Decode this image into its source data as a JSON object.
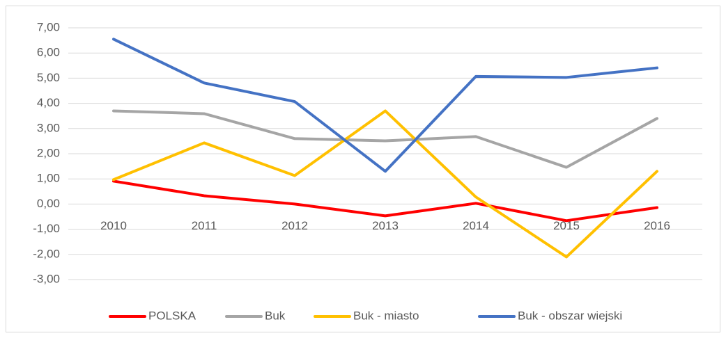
{
  "chart_data": {
    "type": "line",
    "categories": [
      "2010",
      "2011",
      "2012",
      "2013",
      "2014",
      "2015",
      "2016"
    ],
    "series": [
      {
        "name": "POLSKA",
        "color": "#ff0000",
        "values": [
          0.91,
          0.33,
          0.0,
          -0.47,
          0.03,
          -0.66,
          -0.14
        ]
      },
      {
        "name": "Buk",
        "color": "#a5a5a5",
        "values": [
          3.7,
          3.59,
          2.6,
          2.51,
          2.68,
          1.46,
          3.4
        ]
      },
      {
        "name": "Buk - miasto",
        "color": "#ffc000",
        "values": [
          0.97,
          2.43,
          1.13,
          3.7,
          0.28,
          -2.1,
          1.3
        ]
      },
      {
        "name": "Buk - obszar wiejski",
        "color": "#4472c4",
        "values": [
          6.55,
          4.81,
          4.07,
          1.3,
          5.07,
          5.03,
          5.41
        ]
      }
    ],
    "ylim": [
      -3,
      7
    ],
    "yticks": [
      {
        "value": -3,
        "label": "-3,00"
      },
      {
        "value": -2,
        "label": "-2,00"
      },
      {
        "value": -1,
        "label": "-1,00"
      },
      {
        "value": 0,
        "label": "0,00"
      },
      {
        "value": 1,
        "label": "1,00"
      },
      {
        "value": 2,
        "label": "2,00"
      },
      {
        "value": 3,
        "label": "3,00"
      },
      {
        "value": 4,
        "label": "4,00"
      },
      {
        "value": 5,
        "label": "5,00"
      },
      {
        "value": 6,
        "label": "6,00"
      },
      {
        "value": 7,
        "label": "7,00"
      }
    ],
    "grid": true,
    "legend": "bottom"
  }
}
